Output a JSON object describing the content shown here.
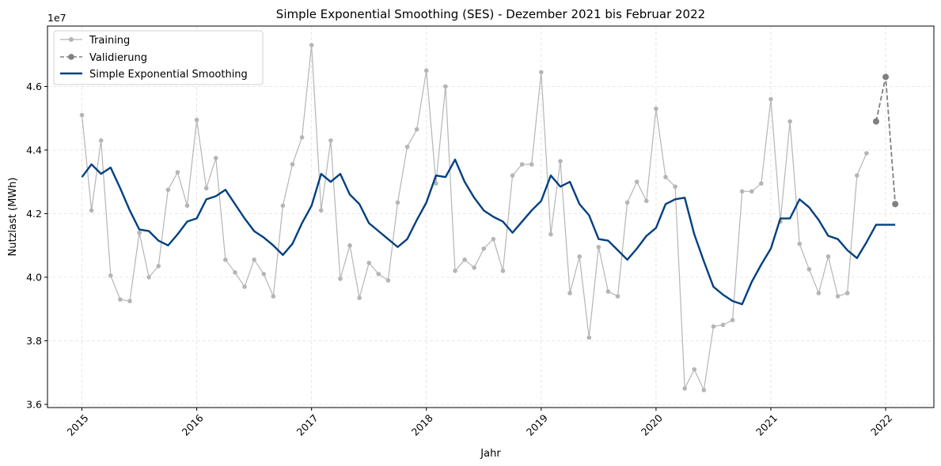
{
  "chart_data": {
    "type": "line",
    "title": "Simple Exponential Smoothing (SES) - Dezember 2021 bis Februar 2022",
    "xlabel": "Jahr",
    "ylabel": "Nutzlast (MWh)",
    "y_offset_label": "1e7",
    "xlim": [
      2014.7,
      2022.42
    ],
    "ylim": [
      35900000,
      47900000
    ],
    "x_ticks": [
      2015,
      2016,
      2017,
      2018,
      2019,
      2020,
      2021,
      2022
    ],
    "x_tick_labels": [
      "2015",
      "2016",
      "2017",
      "2018",
      "2019",
      "2020",
      "2021",
      "2022"
    ],
    "y_ticks": [
      36000000,
      38000000,
      40000000,
      42000000,
      44000000,
      46000000
    ],
    "y_tick_labels": [
      "3.6",
      "3.8",
      "4.0",
      "4.2",
      "4.4",
      "4.6"
    ],
    "grid": true,
    "legend_position": "top-left",
    "series": [
      {
        "name": "Training",
        "color": "#b5b5b5",
        "style": "solid-markers",
        "values": [
          45100000,
          42100000,
          44300000,
          40050000,
          39300000,
          39250000,
          41400000,
          40000000,
          40350000,
          42750000,
          43300000,
          42250000,
          44950000,
          42800000,
          43750000,
          40550000,
          40150000,
          39700000,
          40550000,
          40100000,
          39400000,
          42250000,
          43550000,
          44400000,
          47300000,
          42100000,
          44300000,
          39950000,
          41000000,
          39350000,
          40450000,
          40100000,
          39900000,
          42350000,
          44100000,
          44650000,
          46500000,
          42950000,
          46000000,
          40200000,
          40550000,
          40300000,
          40900000,
          41200000,
          40200000,
          43200000,
          43550000,
          43550000,
          46450000,
          41350000,
          43650000,
          39500000,
          40650000,
          38100000,
          40950000,
          39550000,
          39400000,
          42350000,
          43000000,
          42400000,
          45300000,
          43150000,
          42850000,
          36500000,
          37100000,
          36450000,
          38450000,
          38500000,
          38650000,
          42700000,
          42700000,
          42950000,
          45600000,
          41750000,
          44900000,
          41050000,
          40250000,
          39500000,
          40650000,
          39400000,
          39500000,
          43200000,
          43900000
        ]
      },
      {
        "name": "Validierung",
        "color": "#808080",
        "style": "dashed-markers",
        "values": [
          44900000,
          46300000,
          42300000
        ]
      },
      {
        "name": "Simple Exponential Smoothing",
        "color": "#004080",
        "style": "solid",
        "values": [
          43150000,
          43550000,
          43250000,
          43450000,
          42800000,
          42100000,
          41500000,
          41450000,
          41150000,
          41000000,
          41350000,
          41750000,
          41850000,
          42450000,
          42550000,
          42750000,
          42300000,
          41850000,
          41450000,
          41250000,
          41000000,
          40700000,
          41050000,
          41700000,
          42250000,
          43250000,
          43000000,
          43250000,
          42600000,
          42300000,
          41700000,
          41450000,
          41200000,
          40950000,
          41200000,
          41800000,
          42350000,
          43200000,
          43150000,
          43700000,
          43000000,
          42500000,
          42100000,
          41900000,
          41750000,
          41400000,
          41750000,
          42100000,
          42400000,
          43200000,
          42850000,
          43000000,
          42300000,
          41950000,
          41200000,
          41150000,
          40850000,
          40550000,
          40900000,
          41300000,
          41550000,
          42300000,
          42450000,
          42500000,
          41350000,
          40500000,
          39700000,
          39450000,
          39250000,
          39150000,
          39850000,
          40400000,
          40900000,
          41850000,
          41850000,
          42450000,
          42200000,
          41800000,
          41300000,
          41200000,
          40850000,
          40600000,
          41100000,
          41650000,
          41650000,
          41650000
        ]
      }
    ],
    "validation_x_start_index": 83
  }
}
